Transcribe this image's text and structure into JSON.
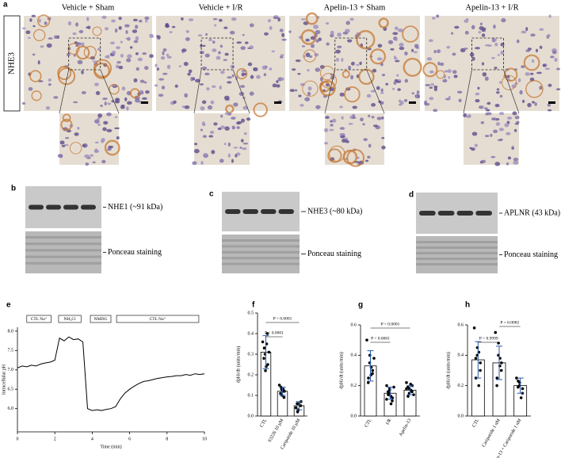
{
  "figure": {
    "panel_a": {
      "label": "a",
      "row_label": "NHE3",
      "columns": [
        "Vehicle + Sham",
        "Vehicle + I/R",
        "Apelin-13 + Sham",
        "Apelin-13 + I/R"
      ]
    },
    "panel_b": {
      "label": "b",
      "band_label": "NHE1 (~91 kDa)",
      "stain_label": "Ponceau staining"
    },
    "panel_c": {
      "label": "c",
      "band_label": "NHE3 (~80 kDa)",
      "stain_label": "Ponceau staining"
    },
    "panel_d": {
      "label": "d",
      "band_label": "APLNR (43 kDa)",
      "stain_label": "Ponceau staining"
    }
  },
  "chart_data": [
    {
      "type": "line",
      "label": "e",
      "xlabel": "Time (min)",
      "ylabel": "Intracellular pH",
      "phases": [
        "CTL Na⁺",
        "NH₄Cl",
        "NMDG",
        "CTL Na⁺"
      ],
      "x": [
        0,
        0.25,
        0.5,
        0.75,
        1,
        1.25,
        1.5,
        1.75,
        2,
        2.25,
        2.5,
        2.75,
        3,
        3.25,
        3.5,
        3.75,
        4,
        4.25,
        4.5,
        4.75,
        5,
        5.25,
        5.5,
        5.75,
        6,
        6.25,
        6.5,
        6.75,
        7,
        7.25,
        7.5,
        7.75,
        8,
        8.25,
        8.5,
        8.75,
        9,
        9.25,
        9.5,
        9.75,
        10
      ],
      "values": [
        7.05,
        7.1,
        7.08,
        7.12,
        7.1,
        7.15,
        7.18,
        7.2,
        7.25,
        7.82,
        7.75,
        7.85,
        7.78,
        7.8,
        7.72,
        6.0,
        5.95,
        5.97,
        5.95,
        5.98,
        6.0,
        6.05,
        6.25,
        6.4,
        6.5,
        6.58,
        6.65,
        6.7,
        6.72,
        6.75,
        6.78,
        6.8,
        6.82,
        6.83,
        6.85,
        6.85,
        6.88,
        6.86,
        6.9,
        6.88,
        6.9
      ],
      "color": "#000000",
      "xlim": [
        0,
        10
      ],
      "xticks": [
        0,
        2,
        4,
        6,
        8,
        10
      ],
      "ylim": [
        5.4,
        8.1
      ],
      "yticks": [
        {
          "value": 6,
          "label": "6.0"
        },
        {
          "value": 6.5,
          "label": "6.5"
        },
        {
          "value": 7,
          "label": "7.0"
        },
        {
          "value": 7.5,
          "label": "7.5"
        },
        {
          "value": 8,
          "label": "8.0"
        }
      ]
    },
    {
      "type": "bar",
      "label": "f",
      "ylabel": "dpHi/dt (units/min)",
      "categories": [
        "CTL",
        "S3226 10 µM",
        "Cariporide 10 µM"
      ],
      "values": [
        0.31,
        0.12,
        0.05
      ],
      "errors": [
        0.08,
        0.02,
        0.02
      ],
      "points": [
        [
          0.36,
          0.22,
          0.3,
          0.25,
          0.4,
          0.33,
          0.28,
          0.35,
          0.24,
          0.31
        ],
        [
          0.15,
          0.1,
          0.13,
          0.12,
          0.09,
          0.14,
          0.11,
          0.13,
          0.12
        ],
        [
          0.04,
          0.06,
          0.03,
          0.07,
          0.05,
          0.02,
          0.06
        ]
      ],
      "annotations": [
        "P < 0.0001",
        "P < 0.0001"
      ],
      "color": "#ffffff",
      "point_color": "#000000",
      "error_color": "#2a5aa8",
      "ylim": [
        0,
        0.5
      ],
      "yticks": [
        {
          "value": 0,
          "label": "0.0"
        },
        0.1,
        0.2,
        0.3,
        0.4,
        0.5
      ]
    },
    {
      "type": "bar",
      "label": "g",
      "ylabel": "dpHi/dt (units/min)",
      "categories": [
        "CTL",
        "I/R",
        "Apelin-13"
      ],
      "values": [
        0.33,
        0.15,
        0.17
      ],
      "errors": [
        0.1,
        0.04,
        0.03
      ],
      "points": [
        [
          0.5,
          0.4,
          0.35,
          0.3,
          0.28,
          0.25,
          0.22,
          0.32,
          0.27,
          0.38
        ],
        [
          0.2,
          0.18,
          0.15,
          0.12,
          0.1,
          0.14,
          0.16,
          0.08,
          0.13,
          0.19,
          0.11,
          0.17
        ],
        [
          0.22,
          0.18,
          0.15,
          0.2,
          0.16,
          0.13,
          0.19,
          0.17,
          0.21,
          0.14,
          0.18
        ]
      ],
      "annotations": [
        "P < 0.0001",
        "P < 0.0001"
      ],
      "color": "#ffffff",
      "point_color": "#000000",
      "error_color": "#2a5aa8",
      "ylim": [
        0,
        0.6
      ],
      "yticks": [
        {
          "value": 0,
          "label": "0.0"
        },
        0.2,
        0.4,
        0.6
      ]
    },
    {
      "type": "bar",
      "label": "h",
      "ylabel": "dpHi/dt (units/min)",
      "categories": [
        "CTL",
        "Cariporide 1 nM",
        "Apelin-13 + Cariporide 1 nM"
      ],
      "values": [
        0.37,
        0.35,
        0.2
      ],
      "errors": [
        0.12,
        0.11,
        0.05
      ],
      "points": [
        [
          0.58,
          0.45,
          0.4,
          0.35,
          0.3,
          0.25,
          0.38,
          0.42,
          0.2
        ],
        [
          0.55,
          0.48,
          0.4,
          0.35,
          0.3,
          0.25,
          0.2,
          0.38,
          0.33
        ],
        [
          0.25,
          0.22,
          0.2,
          0.18,
          0.15,
          0.23,
          0.19,
          0.12
        ]
      ],
      "annotations": [
        "P > 0.9999",
        "P = 0.0082"
      ],
      "color": "#ffffff",
      "point_color": "#000000",
      "error_color": "#2a5aa8",
      "ylim": [
        0,
        0.6
      ],
      "yticks": [
        {
          "value": 0,
          "label": "0.0"
        },
        0.2,
        0.4,
        0.6
      ]
    }
  ]
}
